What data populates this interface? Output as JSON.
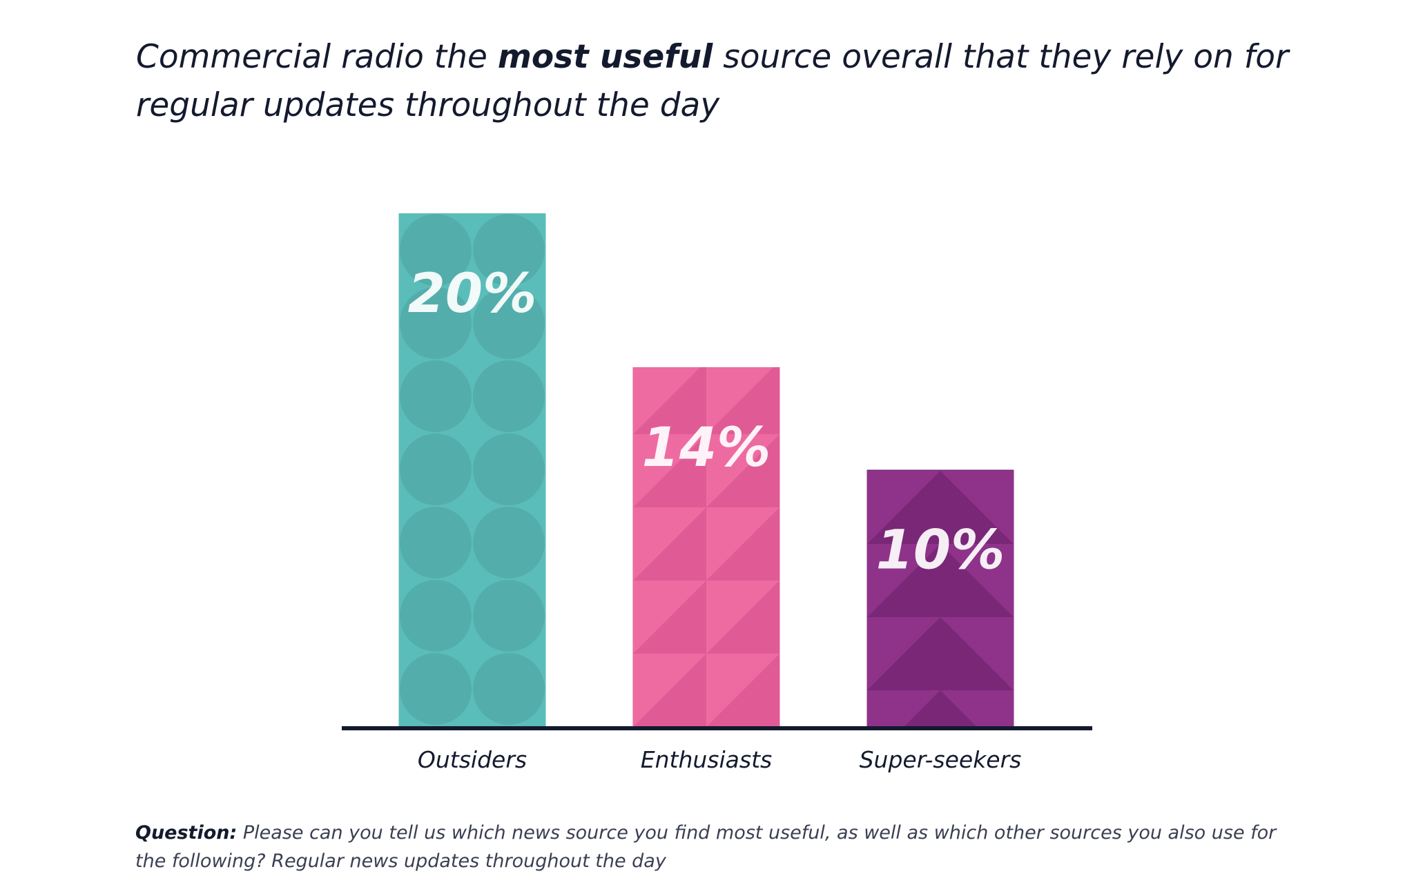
{
  "title": {
    "part1": "Commercial radio the ",
    "emphasis": "most useful",
    "part2": " source overall that they rely on for regular updates throughout the day"
  },
  "footnote": {
    "label": "Question:",
    "text": " Please can you tell us which news source you find most useful, as well as which other sources you also use for the following? Regular news updates throughout the day"
  },
  "colors": {
    "outsiders": "#5bbdb9",
    "outsiders_pattern": "#53aeab",
    "enthusiasts": "#ee6ba1",
    "enthusiasts_pattern": "#e05b96",
    "superseekers": "#8e3389",
    "superseekers_pattern": "#7a2777",
    "axis": "#141a2e"
  },
  "chart_data": {
    "type": "bar",
    "categories": [
      "Outsiders",
      "Enthusiasts",
      "Super-seekers"
    ],
    "values": [
      20,
      14,
      10
    ],
    "value_labels": [
      "20%",
      "14%",
      "10%"
    ],
    "unit": "%",
    "ylim": [
      0,
      20
    ],
    "grid": false,
    "legend": "none"
  }
}
